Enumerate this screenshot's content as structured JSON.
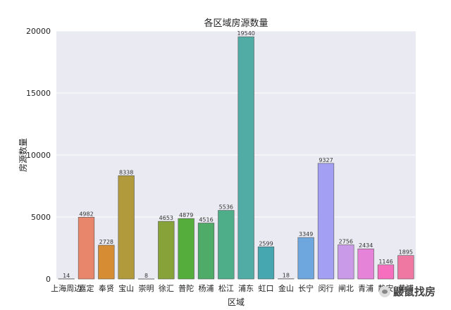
{
  "chart_data": {
    "type": "bar",
    "title": "各区域房源数量",
    "xlabel": "区域",
    "ylabel": "房源数量",
    "ylim": [
      0,
      20000
    ],
    "yticks": [
      0,
      5000,
      10000,
      15000,
      20000
    ],
    "grid": true,
    "categories": [
      "上海周边",
      "嘉定",
      "奉贤",
      "宝山",
      "崇明",
      "徐汇",
      "普陀",
      "杨浦",
      "松江",
      "浦东",
      "虹口",
      "金山",
      "长宁",
      "闵行",
      "闸北",
      "青浦",
      "静安",
      "黄浦"
    ],
    "values": [
      14,
      4982,
      2728,
      8338,
      8,
      4653,
      4879,
      4516,
      5536,
      19540,
      2599,
      18,
      3349,
      9327,
      2756,
      2434,
      1146,
      1895
    ],
    "colors": [
      "#f77189",
      "#e8866c",
      "#d58c32",
      "#b19a3c",
      "#a59d3f",
      "#88a23a",
      "#55ad3b",
      "#4fac68",
      "#4fae8a",
      "#50aca4",
      "#46a7b0",
      "#4ba4c1",
      "#6ea6de",
      "#a39ff3",
      "#c99ae8",
      "#e583d8",
      "#f66fbe",
      "#ef78a2"
    ]
  },
  "watermark": {
    "icon": "wechat-logo-icon",
    "text": "鼹鼠找房"
  }
}
